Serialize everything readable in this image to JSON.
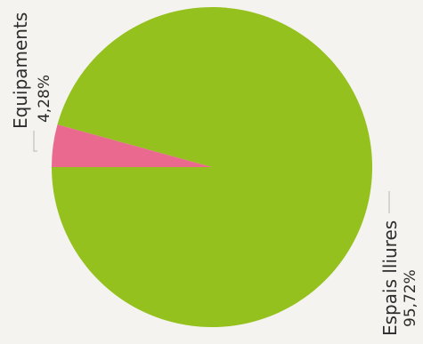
{
  "chart_data": {
    "type": "pie",
    "slices": [
      {
        "label": "Espais lliures",
        "value": 95.72,
        "display": "95,72%",
        "color": "#95c11f"
      },
      {
        "label": "Equipaments",
        "value": 4.28,
        "display": "4,28%",
        "color": "#e96a8e"
      }
    ],
    "unit": "%",
    "label_orientation": "rotated -90°",
    "legend": "none"
  }
}
